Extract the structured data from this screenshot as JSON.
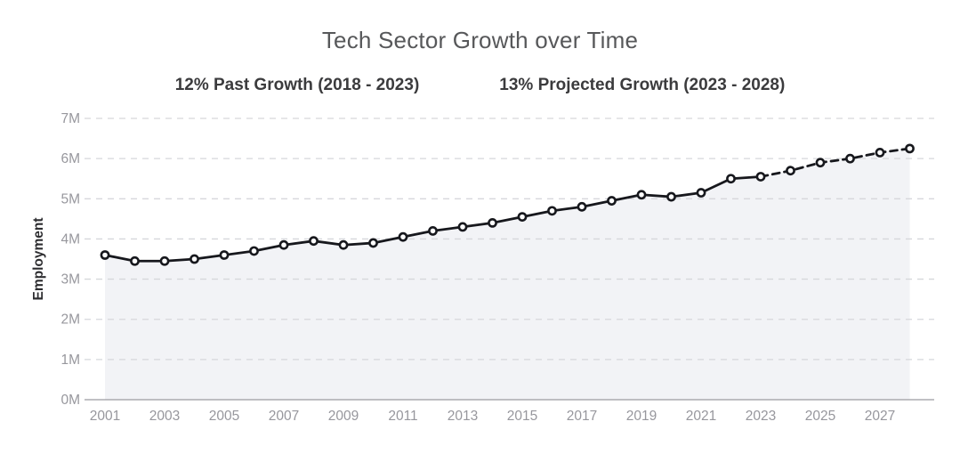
{
  "header": {
    "title": "Tech Sector Growth over Time",
    "subtitle_left": "12% Past Growth (2018 - 2023)",
    "subtitle_right": "13% Projected Growth (2023 - 2028)"
  },
  "chart_data": {
    "type": "line",
    "title": "Tech Sector Growth over Time",
    "annotations": [
      "12% Past Growth (2018 - 2023)",
      "13% Projected Growth (2023 - 2028)"
    ],
    "ylabel": "Employment",
    "xlabel": "",
    "unit": "M",
    "x": [
      2001,
      2002,
      2003,
      2004,
      2005,
      2006,
      2007,
      2008,
      2009,
      2010,
      2011,
      2012,
      2013,
      2014,
      2015,
      2016,
      2017,
      2018,
      2019,
      2020,
      2021,
      2022,
      2023,
      2024,
      2025,
      2026,
      2027,
      2028
    ],
    "values_millions": [
      3.6,
      3.45,
      3.45,
      3.5,
      3.6,
      3.7,
      3.85,
      3.95,
      3.85,
      3.9,
      4.05,
      4.2,
      4.3,
      4.4,
      4.55,
      4.7,
      4.8,
      4.95,
      5.1,
      5.05,
      5.15,
      5.5,
      5.55,
      5.7,
      5.9,
      6.0,
      6.15,
      6.25
    ],
    "projected_from_year": 2023,
    "series": [
      {
        "name": "Past (solid)",
        "style": "solid",
        "year_range": [
          2001,
          2023
        ]
      },
      {
        "name": "Projected (dashed)",
        "style": "dashed",
        "year_range": [
          2023,
          2028
        ]
      }
    ],
    "ylim": [
      0,
      7
    ],
    "ytick_labels": [
      "0M",
      "1M",
      "2M",
      "3M",
      "4M",
      "5M",
      "6M",
      "7M"
    ],
    "xtick_labels": [
      "2001",
      "2003",
      "2005",
      "2007",
      "2009",
      "2011",
      "2013",
      "2015",
      "2017",
      "2019",
      "2021",
      "2023",
      "2025",
      "2027"
    ],
    "grid": "horizontal dashed",
    "legend": "none",
    "area_fill": true,
    "colors": {
      "line": "#17181d",
      "marker_fill": "#ffffff",
      "area": "#f2f3f6",
      "grid": "#d6d7db",
      "axis": "#9b9ba1",
      "tick_label": "#97979d",
      "title": "#57585a",
      "subtitle": "#3b3b3d",
      "ylabel": "#2d2d30",
      "background": "#ffffff"
    }
  }
}
